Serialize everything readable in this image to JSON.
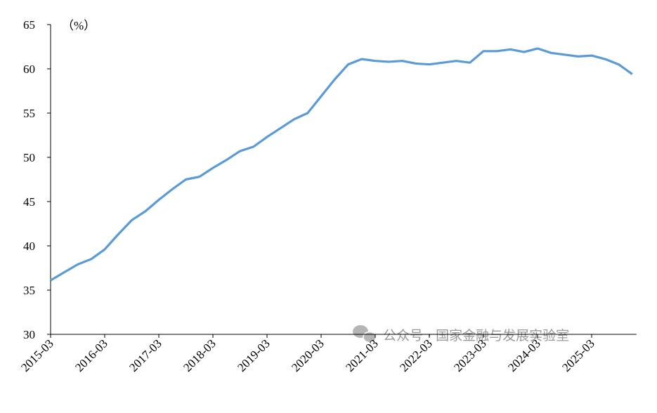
{
  "chart_data": {
    "type": "line",
    "y_label": "（%）",
    "watermark": "公众号 · 国家金融与发展实验室",
    "categories": [
      "2015-03",
      null,
      null,
      null,
      "2016-03",
      null,
      null,
      null,
      "2017-03",
      null,
      null,
      null,
      "2018-03",
      null,
      null,
      null,
      "2019-03",
      null,
      null,
      null,
      "2020-03",
      null,
      null,
      null,
      "2021-03",
      null,
      null,
      null,
      "2022-03",
      null,
      null,
      null,
      "2023-03",
      null,
      null,
      null,
      "2024-03",
      null,
      null,
      null,
      "2025-03",
      null,
      null,
      null
    ],
    "series": [
      {
        "color": "#5b9bd5",
        "values": [
          36.1,
          37.0,
          37.9,
          38.5,
          39.6,
          41.3,
          42.9,
          43.9,
          45.2,
          46.4,
          47.5,
          47.8,
          48.8,
          49.7,
          50.7,
          51.2,
          52.3,
          53.3,
          54.3,
          55.0,
          56.9,
          58.8,
          60.5,
          61.1,
          60.9,
          60.8,
          60.9,
          60.6,
          60.5,
          60.7,
          60.9,
          60.7,
          62.0,
          62.0,
          62.2,
          61.9,
          62.3,
          61.8,
          61.6,
          61.4,
          61.5,
          61.1,
          60.5,
          59.4
        ]
      }
    ],
    "ylim": [
      30,
      65
    ],
    "yticks": [
      30,
      35,
      40,
      45,
      50,
      55,
      60,
      65
    ],
    "grid": false
  }
}
